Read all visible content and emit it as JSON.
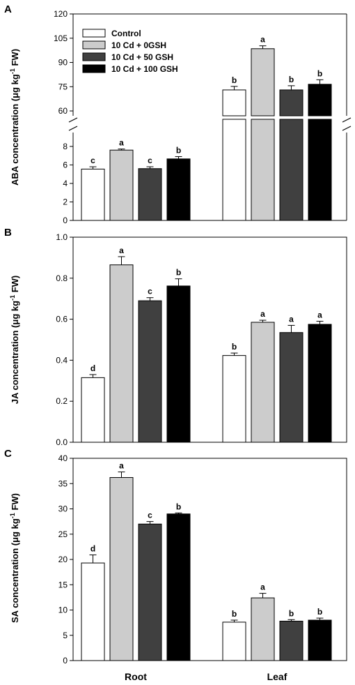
{
  "figure": {
    "categories": [
      "Root",
      "Leaf"
    ],
    "colors": {
      "Control": "#ffffff",
      "10 Cd + 0GSH": "#cccccc",
      "10 Cd + 50 GSH": "#404040",
      "10 Cd + 100 GSH": "#000000"
    }
  },
  "chart_data": [
    {
      "panel": "A",
      "type": "bar",
      "ylabel_main": "ABA concentration (",
      "ylabel_mu": "μ",
      "ylabel_unit": "g kg",
      "ylabel_exp": "-1",
      "ylabel_end": " FW)",
      "categories": [
        "Root",
        "Leaf"
      ],
      "axis_break": true,
      "ylim_lower": [
        0,
        9.5
      ],
      "ylim_upper": [
        57,
        120
      ],
      "yticks_lower": [
        0,
        2,
        4,
        6,
        8
      ],
      "yticks_upper": [
        60,
        75,
        90,
        105,
        120
      ],
      "legend": [
        "Control",
        "10 Cd + 0GSH",
        "10 Cd + 50 GSH",
        "10 Cd + 100 GSH"
      ],
      "legend_position": "top-left",
      "series": [
        {
          "name": "Control",
          "values": [
            5.55,
            73
          ],
          "errors": [
            0.25,
            2.2
          ],
          "letters": [
            "c",
            "b"
          ]
        },
        {
          "name": "10 Cd + 0GSH",
          "values": [
            7.6,
            98.5
          ],
          "errors": [
            0.12,
            1.8
          ],
          "letters": [
            "a",
            "a"
          ]
        },
        {
          "name": "10 Cd + 50 GSH",
          "values": [
            5.6,
            73
          ],
          "errors": [
            0.2,
            2.6
          ],
          "letters": [
            "c",
            "b"
          ]
        },
        {
          "name": "10 Cd + 100 GSH",
          "values": [
            6.65,
            76.5
          ],
          "errors": [
            0.25,
            2.8
          ],
          "letters": [
            "b",
            "b"
          ]
        }
      ]
    },
    {
      "panel": "B",
      "type": "bar",
      "ylabel_main": "JA concentration (",
      "ylabel_mu": "μ",
      "ylabel_unit": "g kg",
      "ylabel_exp": "-1",
      "ylabel_end": " FW)",
      "categories": [
        "Root",
        "Leaf"
      ],
      "ylim": [
        0,
        1.0
      ],
      "yticks": [
        "0.0",
        "0.2",
        "0.4",
        "0.6",
        "0.8",
        "1.0"
      ],
      "series": [
        {
          "name": "Control",
          "values": [
            0.315,
            0.423
          ],
          "errors": [
            0.015,
            0.012
          ],
          "letters": [
            "d",
            "b"
          ]
        },
        {
          "name": "10 Cd + 0GSH",
          "values": [
            0.865,
            0.585
          ],
          "errors": [
            0.04,
            0.01
          ],
          "letters": [
            "a",
            "a"
          ]
        },
        {
          "name": "10 Cd + 50 GSH",
          "values": [
            0.69,
            0.535
          ],
          "errors": [
            0.015,
            0.035
          ],
          "letters": [
            "c",
            "a"
          ]
        },
        {
          "name": "10 Cd + 100 GSH",
          "values": [
            0.762,
            0.575
          ],
          "errors": [
            0.035,
            0.015
          ],
          "letters": [
            "b",
            "a"
          ]
        }
      ]
    },
    {
      "panel": "C",
      "type": "bar",
      "ylabel_main": "SA concentration (",
      "ylabel_mu": "μ",
      "ylabel_unit": "g kg",
      "ylabel_exp": "-1",
      "ylabel_end": " FW)",
      "categories": [
        "Root",
        "Leaf"
      ],
      "ylim": [
        0,
        40
      ],
      "yticks": [
        "0",
        "5",
        "10",
        "15",
        "20",
        "25",
        "30",
        "35",
        "40"
      ],
      "series": [
        {
          "name": "Control",
          "values": [
            19.3,
            7.6
          ],
          "errors": [
            1.6,
            0.4
          ],
          "letters": [
            "d",
            "b"
          ]
        },
        {
          "name": "10 Cd + 0GSH",
          "values": [
            36.2,
            12.4
          ],
          "errors": [
            1.1,
            0.9
          ],
          "letters": [
            "a",
            "a"
          ]
        },
        {
          "name": "10 Cd + 50 GSH",
          "values": [
            27.0,
            7.8
          ],
          "errors": [
            0.5,
            0.3
          ],
          "letters": [
            "c",
            "b"
          ]
        },
        {
          "name": "10 Cd + 100 GSH",
          "values": [
            29.0,
            8.0
          ],
          "errors": [
            0.2,
            0.4
          ],
          "letters": [
            "b",
            "b"
          ]
        }
      ]
    }
  ]
}
